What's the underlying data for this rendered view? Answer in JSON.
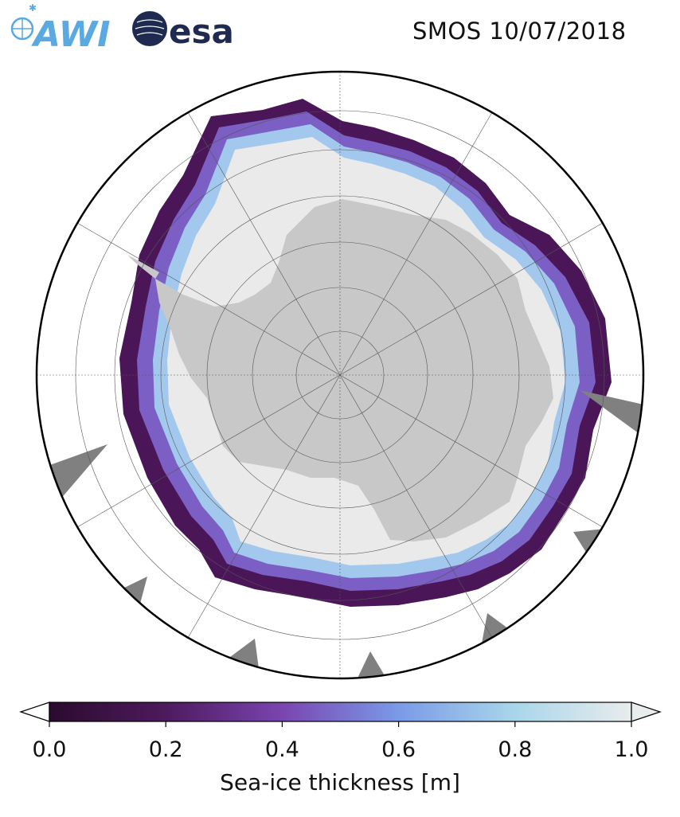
{
  "header": {
    "title": "SMOS 10/07/2018",
    "logo_awi": "AWI",
    "logo_esa": "esa",
    "awi_color": "#5aa9e0",
    "esa_color": "#1e2a4f"
  },
  "map": {
    "projection": "south-polar-stereographic",
    "land_color": "#c8c8c8",
    "thick_ice_color": "#eaeaea",
    "missing_data_color": "#808080",
    "graticule": "on"
  },
  "colorbar": {
    "label": "Sea-ice thickness [m]",
    "ticks": [
      "0.0",
      "0.2",
      "0.4",
      "0.6",
      "0.8",
      "1.0"
    ],
    "tick_values": [
      0.0,
      0.2,
      0.4,
      0.6,
      0.8,
      1.0
    ],
    "range": [
      0.0,
      1.0
    ],
    "extend": "both",
    "colormap_stops": [
      "#2a0b2e",
      "#4e1a5e",
      "#7a45b0",
      "#7a9ae8",
      "#a9d6ea",
      "#e8ecec"
    ]
  }
}
